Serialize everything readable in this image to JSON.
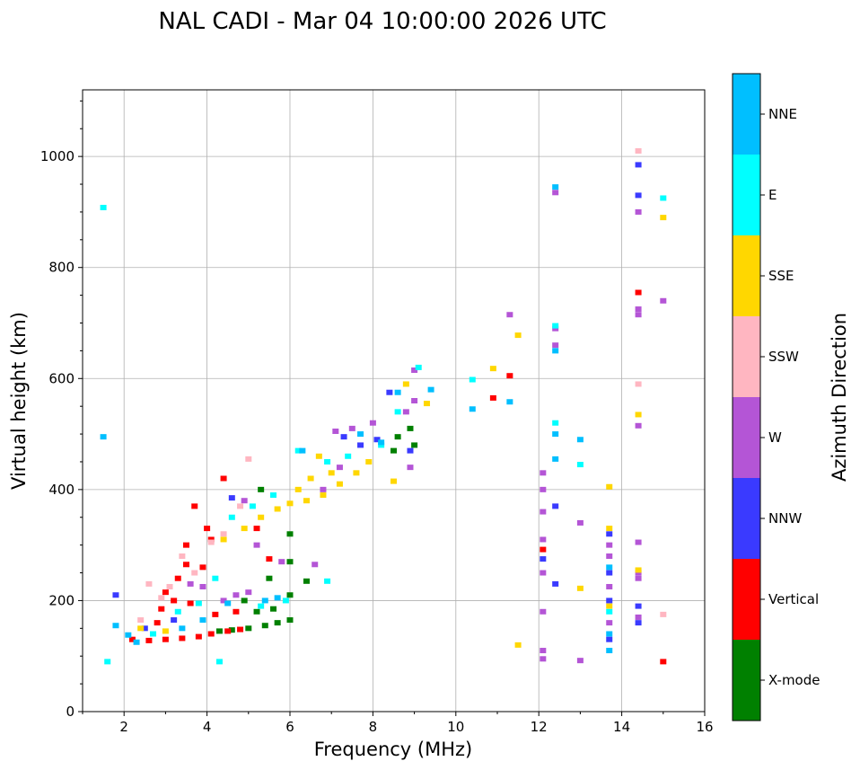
{
  "chart_data": {
    "type": "scatter",
    "title": "NAL CADI - Mar 04 10:00:00 2026 UTC",
    "xlabel": "Frequency (MHz)",
    "ylabel": "Virtual height (km)",
    "xlim": [
      1,
      16
    ],
    "ylim": [
      0,
      1120
    ],
    "xticks": [
      2,
      4,
      6,
      8,
      10,
      12,
      14,
      16
    ],
    "yticks": [
      0,
      200,
      400,
      600,
      800,
      1000
    ],
    "grid": true,
    "colorbar": {
      "title": "Azimuth Direction",
      "categories": [
        {
          "label": "X-mode",
          "color": "#008000"
        },
        {
          "label": "Vertical",
          "color": "#ff0000"
        },
        {
          "label": "NNW",
          "color": "#3a3aff"
        },
        {
          "label": "W",
          "color": "#b455d6"
        },
        {
          "label": "SSW",
          "color": "#ffb6c1"
        },
        {
          "label": "SSE",
          "color": "#ffd700"
        },
        {
          "label": "E",
          "color": "#00ffff"
        },
        {
          "label": "NNE",
          "color": "#00bfff"
        }
      ]
    },
    "series": [
      {
        "name": "X-mode",
        "points": [
          [
            4.3,
            145
          ],
          [
            4.6,
            147
          ],
          [
            5.0,
            150
          ],
          [
            5.4,
            155
          ],
          [
            5.7,
            160
          ],
          [
            6.0,
            165
          ],
          [
            5.2,
            180
          ],
          [
            5.6,
            185
          ],
          [
            6.0,
            210
          ],
          [
            6.0,
            270
          ],
          [
            5.5,
            240
          ],
          [
            6.4,
            235
          ],
          [
            4.9,
            200
          ],
          [
            8.6,
            495
          ],
          [
            8.9,
            510
          ],
          [
            9.0,
            480
          ],
          [
            6.0,
            320
          ],
          [
            5.3,
            400
          ],
          [
            8.5,
            470
          ]
        ]
      },
      {
        "name": "Vertical",
        "points": [
          [
            2.2,
            130
          ],
          [
            2.6,
            128
          ],
          [
            3.0,
            130
          ],
          [
            3.4,
            132
          ],
          [
            3.8,
            135
          ],
          [
            4.1,
            140
          ],
          [
            4.5,
            145
          ],
          [
            4.8,
            148
          ],
          [
            2.9,
            185
          ],
          [
            3.2,
            200
          ],
          [
            3.6,
            195
          ],
          [
            3.0,
            215
          ],
          [
            3.3,
            240
          ],
          [
            3.5,
            265
          ],
          [
            3.9,
            260
          ],
          [
            4.2,
            175
          ],
          [
            4.7,
            180
          ],
          [
            4.1,
            310
          ],
          [
            4.0,
            330
          ],
          [
            4.4,
            420
          ],
          [
            3.7,
            370
          ],
          [
            5.5,
            275
          ],
          [
            2.8,
            160
          ],
          [
            11.3,
            605
          ],
          [
            10.9,
            565
          ],
          [
            12.1,
            292
          ],
          [
            14.4,
            755
          ],
          [
            15.0,
            90
          ],
          [
            5.2,
            330
          ],
          [
            3.5,
            300
          ]
        ]
      },
      {
        "name": "NNW",
        "points": [
          [
            1.8,
            210
          ],
          [
            2.5,
            150
          ],
          [
            3.2,
            165
          ],
          [
            4.6,
            385
          ],
          [
            7.3,
            495
          ],
          [
            7.7,
            480
          ],
          [
            8.1,
            490
          ],
          [
            8.9,
            470
          ],
          [
            12.4,
            370
          ],
          [
            12.4,
            230
          ],
          [
            13.7,
            250
          ],
          [
            13.7,
            200
          ],
          [
            13.7,
            130
          ],
          [
            13.7,
            320
          ],
          [
            14.4,
            160
          ],
          [
            14.4,
            190
          ],
          [
            14.4,
            930
          ],
          [
            14.4,
            985
          ],
          [
            12.1,
            275
          ],
          [
            8.4,
            575
          ]
        ]
      },
      {
        "name": "W",
        "points": [
          [
            4.9,
            380
          ],
          [
            5.2,
            300
          ],
          [
            5.8,
            270
          ],
          [
            4.4,
            200
          ],
          [
            4.7,
            210
          ],
          [
            5.0,
            215
          ],
          [
            3.6,
            230
          ],
          [
            3.9,
            225
          ],
          [
            6.6,
            265
          ],
          [
            7.1,
            505
          ],
          [
            7.5,
            510
          ],
          [
            8.0,
            520
          ],
          [
            8.8,
            540
          ],
          [
            9.0,
            560
          ],
          [
            12.1,
            430
          ],
          [
            12.1,
            400
          ],
          [
            12.1,
            360
          ],
          [
            12.1,
            310
          ],
          [
            12.1,
            250
          ],
          [
            12.1,
            180
          ],
          [
            12.1,
            110
          ],
          [
            12.1,
            95
          ],
          [
            12.4,
            935
          ],
          [
            12.4,
            660
          ],
          [
            12.4,
            690
          ],
          [
            13.7,
            300
          ],
          [
            13.7,
            280
          ],
          [
            13.7,
            225
          ],
          [
            13.7,
            160
          ],
          [
            14.4,
            305
          ],
          [
            14.4,
            250
          ],
          [
            14.4,
            240
          ],
          [
            14.4,
            170
          ],
          [
            14.4,
            900
          ],
          [
            14.4,
            715
          ],
          [
            14.4,
            725
          ],
          [
            14.4,
            515
          ],
          [
            15.0,
            740
          ],
          [
            11.3,
            715
          ],
          [
            13.0,
            340
          ],
          [
            13.0,
            92
          ],
          [
            8.9,
            440
          ],
          [
            9.0,
            615
          ],
          [
            6.8,
            400
          ],
          [
            7.2,
            440
          ]
        ]
      },
      {
        "name": "SSW",
        "points": [
          [
            2.6,
            230
          ],
          [
            2.9,
            205
          ],
          [
            3.1,
            225
          ],
          [
            3.7,
            250
          ],
          [
            4.1,
            305
          ],
          [
            4.4,
            320
          ],
          [
            4.8,
            370
          ],
          [
            2.4,
            165
          ],
          [
            14.4,
            1010
          ],
          [
            14.4,
            590
          ],
          [
            15.0,
            175
          ],
          [
            5.0,
            455
          ],
          [
            3.4,
            280
          ]
        ]
      },
      {
        "name": "SSE",
        "points": [
          [
            4.4,
            310
          ],
          [
            4.9,
            330
          ],
          [
            5.3,
            350
          ],
          [
            5.7,
            365
          ],
          [
            6.0,
            375
          ],
          [
            6.4,
            380
          ],
          [
            6.8,
            390
          ],
          [
            7.2,
            410
          ],
          [
            7.6,
            430
          ],
          [
            7.9,
            450
          ],
          [
            6.5,
            420
          ],
          [
            7.0,
            430
          ],
          [
            8.5,
            415
          ],
          [
            8.8,
            590
          ],
          [
            9.3,
            555
          ],
          [
            13.7,
            405
          ],
          [
            13.7,
            330
          ],
          [
            13.7,
            190
          ],
          [
            14.4,
            535
          ],
          [
            14.4,
            255
          ],
          [
            15.0,
            890
          ],
          [
            13.0,
            222
          ],
          [
            10.9,
            618
          ],
          [
            11.5,
            678
          ],
          [
            11.5,
            120
          ],
          [
            2.4,
            150
          ],
          [
            3.0,
            145
          ],
          [
            6.2,
            400
          ],
          [
            6.7,
            460
          ]
        ]
      },
      {
        "name": "E",
        "points": [
          [
            1.5,
            908
          ],
          [
            1.6,
            90
          ],
          [
            2.7,
            140
          ],
          [
            3.3,
            180
          ],
          [
            3.8,
            195
          ],
          [
            4.2,
            240
          ],
          [
            4.6,
            350
          ],
          [
            5.1,
            370
          ],
          [
            5.6,
            390
          ],
          [
            6.2,
            470
          ],
          [
            6.9,
            450
          ],
          [
            7.4,
            460
          ],
          [
            8.2,
            480
          ],
          [
            8.6,
            540
          ],
          [
            9.1,
            620
          ],
          [
            10.4,
            598
          ],
          [
            12.4,
            520
          ],
          [
            12.4,
            695
          ],
          [
            13.7,
            180
          ],
          [
            15.0,
            925
          ],
          [
            13.0,
            445
          ],
          [
            4.3,
            90
          ],
          [
            5.3,
            190
          ],
          [
            5.9,
            200
          ],
          [
            6.9,
            235
          ]
        ]
      },
      {
        "name": "NNE",
        "points": [
          [
            1.5,
            495
          ],
          [
            1.8,
            155
          ],
          [
            2.1,
            138
          ],
          [
            2.3,
            125
          ],
          [
            3.4,
            150
          ],
          [
            3.9,
            165
          ],
          [
            4.5,
            195
          ],
          [
            5.4,
            200
          ],
          [
            5.7,
            205
          ],
          [
            6.3,
            470
          ],
          [
            7.7,
            500
          ],
          [
            8.2,
            485
          ],
          [
            8.6,
            575
          ],
          [
            10.4,
            545
          ],
          [
            12.4,
            650
          ],
          [
            12.4,
            945
          ],
          [
            12.4,
            455
          ],
          [
            12.4,
            500
          ],
          [
            13.7,
            140
          ],
          [
            13.7,
            110
          ],
          [
            13.7,
            260
          ],
          [
            13.0,
            490
          ],
          [
            11.3,
            558
          ],
          [
            9.4,
            580
          ]
        ]
      }
    ]
  }
}
